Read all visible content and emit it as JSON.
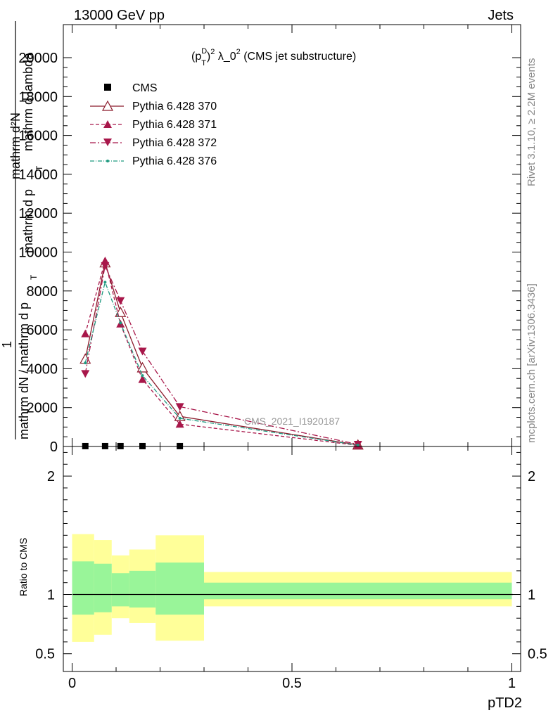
{
  "header": {
    "left_title": "13000 GeV pp",
    "right_title": "Jets"
  },
  "side_text": {
    "rivet": "Rivet 3.1.10, ≥ 2.2M events",
    "mcplots": "mcplots.cern.ch [arXiv:1306.3436]"
  },
  "chart_data": {
    "type": "line",
    "title": "(p_T^D)^2 λ_0^2 (CMS jet substructure)",
    "title_parts": {
      "p": "(p",
      "sup1": "D",
      "sub": "T",
      "close": ")",
      "sup2": "2",
      "mid": " λ_0",
      "sup3": "2",
      "tail": " (CMS jet substructure)"
    },
    "watermark": "CMS_2021_I1920187",
    "xlabel": "pTD2",
    "ylabel_fragments": [
      "mathrm d²N",
      "mathrm d p",
      "mathrm d lambda",
      "1",
      "mathrm dN / mathrm d p",
      "T",
      "T"
    ],
    "ratio_ylabel": "Ratio to CMS",
    "xlim": [
      -0.02,
      1.02
    ],
    "ylim": [
      0,
      21700
    ],
    "ratio_ylim": [
      0.35,
      2.25
    ],
    "x_ticks": [
      0,
      0.5,
      1
    ],
    "x_tick_labels": [
      "0",
      "0.5",
      "1"
    ],
    "y_ticks": [
      0,
      2000,
      4000,
      6000,
      8000,
      10000,
      12000,
      14000,
      16000,
      18000,
      20000
    ],
    "y_tick_labels": [
      "0",
      "2000",
      "4000",
      "6000",
      "8000",
      "10000",
      "12000",
      "14000",
      "16000",
      "18000",
      "20000"
    ],
    "ratio_ticks": [
      0.5,
      1,
      2
    ],
    "ratio_tick_labels": [
      "0.5",
      "1",
      "2"
    ],
    "x_points": [
      0.03,
      0.075,
      0.11,
      0.16,
      0.245,
      0.65
    ],
    "bin_edges": [
      0.0,
      0.05,
      0.09,
      0.13,
      0.19,
      0.3,
      1.0
    ],
    "series": [
      {
        "name": "CMS",
        "values": [
          20,
          20,
          20,
          20,
          20,
          null
        ],
        "color": "#000000",
        "marker": "square",
        "dash": ""
      },
      {
        "name": "Pythia 6.428 370",
        "values": [
          4500,
          9450,
          6900,
          4050,
          1550,
          80
        ],
        "color": "#8b1a2b",
        "marker": "triangle-open",
        "dash": ""
      },
      {
        "name": "Pythia 6.428 371",
        "values": [
          5800,
          9550,
          6300,
          3450,
          1150,
          60
        ],
        "color": "#a8174a",
        "marker": "triangle",
        "dash": "5,3"
      },
      {
        "name": "Pythia 6.428 372",
        "values": [
          3750,
          9300,
          7500,
          4900,
          2050,
          110
        ],
        "color": "#a8174a",
        "marker": "triangle-down",
        "dash": "8,3,2,3"
      },
      {
        "name": "Pythia 6.428 376",
        "values": [
          4300,
          8450,
          6350,
          3650,
          1450,
          70
        ],
        "color": "#1f9a80",
        "marker": "dot",
        "dash": "6,2,1,2"
      }
    ],
    "ratio_bands": {
      "inner": [
        [
          0.83,
          1.28
        ],
        [
          0.85,
          1.26
        ],
        [
          0.9,
          1.18
        ],
        [
          0.89,
          1.2
        ],
        [
          0.83,
          1.27
        ],
        [
          0.96,
          1.1
        ]
      ],
      "outer": [
        [
          0.6,
          1.51
        ],
        [
          0.66,
          1.46
        ],
        [
          0.8,
          1.33
        ],
        [
          0.76,
          1.38
        ],
        [
          0.61,
          1.5
        ],
        [
          0.9,
          1.19
        ]
      ],
      "inner_color": "#99f599",
      "outer_color": "#ffff99"
    }
  }
}
